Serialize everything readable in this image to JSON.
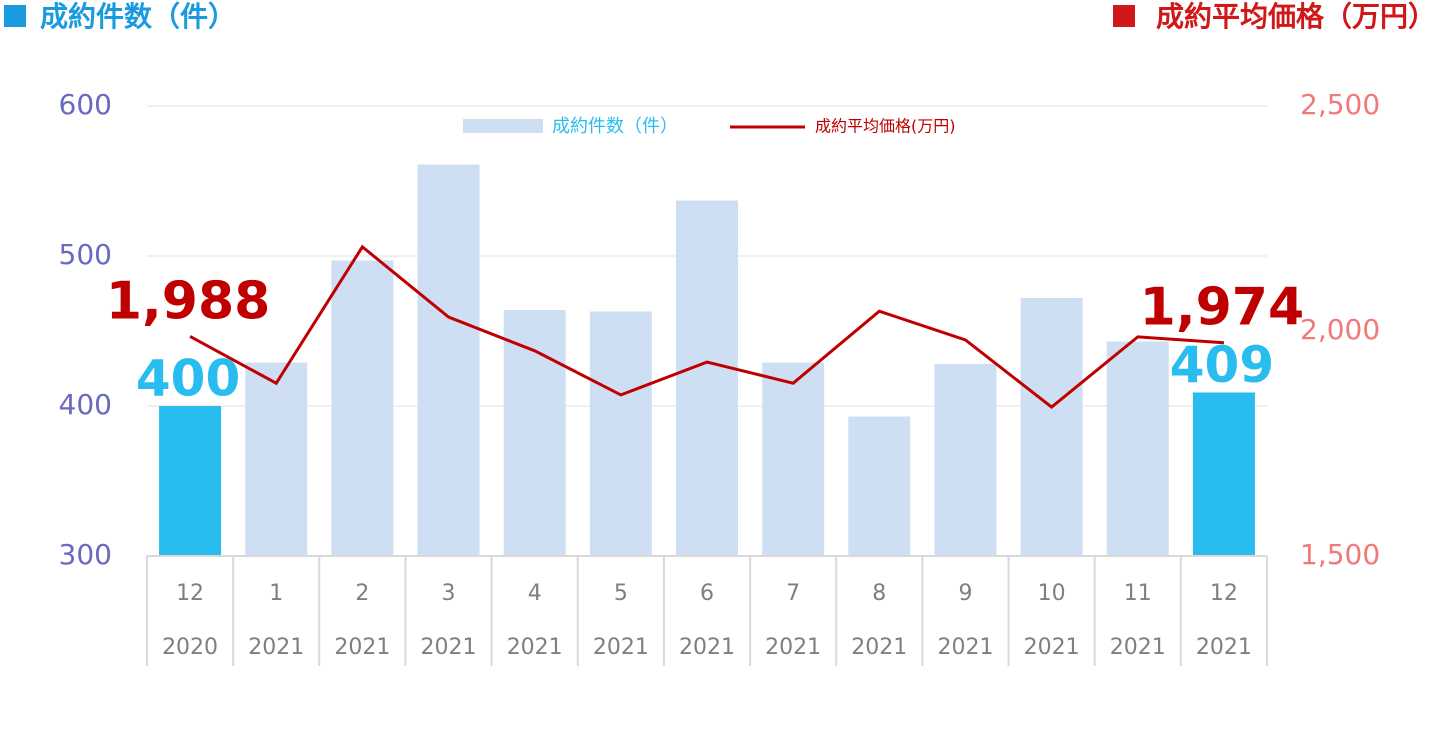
{
  "chart_data": {
    "type": "bar-line",
    "y_label": "成約件数（件）",
    "y2_label": "成約平均価格（万円）",
    "categories": [
      "12",
      "1",
      "2",
      "3",
      "4",
      "5",
      "6",
      "7",
      "8",
      "9",
      "10",
      "11",
      "12"
    ],
    "category_groups": [
      "2020",
      "2021",
      "2021",
      "2021",
      "2021",
      "2021",
      "2021",
      "2021",
      "2021",
      "2021",
      "2021",
      "2021",
      "2021"
    ],
    "series": [
      {
        "name": "成約件数（件）",
        "type": "bar",
        "color": "#cfdff3",
        "colors": [
          "#29bdef",
          "#cfdff3",
          "#cfdff3",
          "#cfdff3",
          "#cfdff3",
          "#cfdff3",
          "#cfdff3",
          "#cfdff3",
          "#cfdff3",
          "#cfdff3",
          "#cfdff3",
          "#cfdff3",
          "#29bdef"
        ],
        "label_color": "#29bdef",
        "values": [
          400,
          429,
          497,
          561,
          464,
          463,
          537,
          429,
          393,
          428,
          472,
          443,
          409
        ],
        "value_labels": [
          "400",
          null,
          null,
          null,
          null,
          null,
          null,
          null,
          null,
          null,
          null,
          null,
          "409"
        ]
      },
      {
        "name": "成約平均価格(万円)",
        "type": "line",
        "axis": "y2",
        "color": "#c00000",
        "values": [
          1988,
          1884,
          2187,
          2031,
          1956,
          1858,
          1931,
          1884,
          2044,
          1980,
          1831,
          1987,
          1974
        ],
        "value_labels": [
          "1,988",
          null,
          null,
          null,
          null,
          null,
          null,
          null,
          null,
          null,
          null,
          null,
          "1,974"
        ]
      }
    ],
    "ylim": [
      300,
      600
    ],
    "yticks": [
      300,
      400,
      500,
      600
    ],
    "y2lim": [
      1500,
      2500
    ],
    "y2ticks": [
      {
        "value": 1500,
        "label": "1,500"
      },
      {
        "value": 2000,
        "label": "2,000"
      },
      {
        "value": 2500,
        "label": "2,500"
      }
    ],
    "grid": true
  }
}
